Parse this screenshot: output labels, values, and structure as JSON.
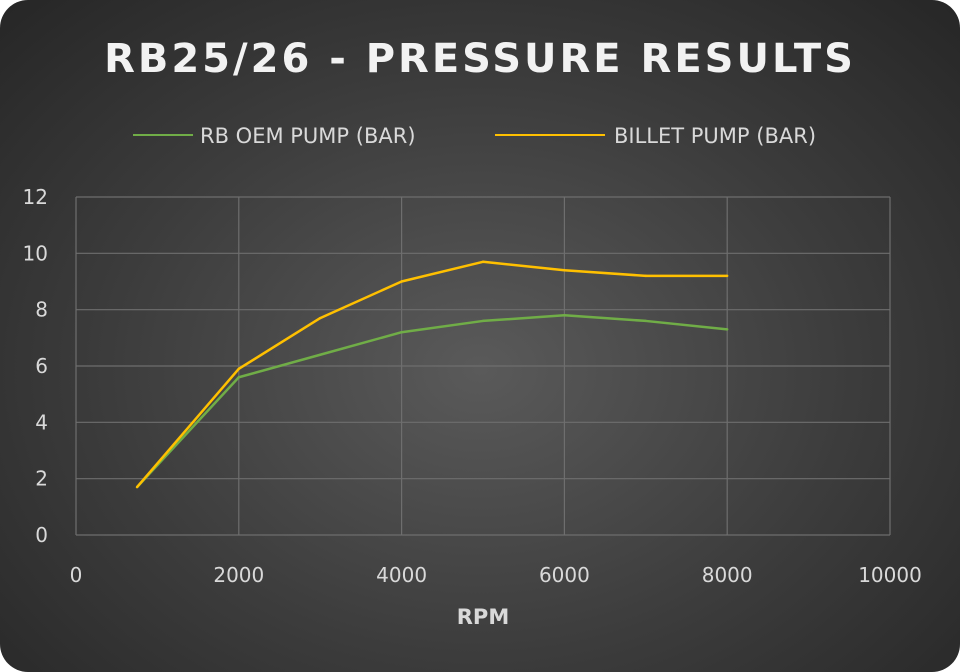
{
  "chart_data": {
    "type": "line",
    "title": "RB25/26 - PRESSURE RESULTS",
    "xlabel": "RPM",
    "ylabel": "",
    "xlim": [
      0,
      10000
    ],
    "ylim": [
      0,
      12
    ],
    "xticks": [
      0,
      2000,
      4000,
      6000,
      8000,
      10000
    ],
    "yticks": [
      0,
      2,
      4,
      6,
      8,
      10,
      12
    ],
    "grid": true,
    "legend_position": "top",
    "series": [
      {
        "name": "RB OEM PUMP (BAR)",
        "color": "#70ad47",
        "x": [
          750,
          2000,
          3000,
          4000,
          5000,
          6000,
          7000,
          8000
        ],
        "y": [
          1.7,
          5.6,
          6.4,
          7.2,
          7.6,
          7.8,
          7.6,
          7.3
        ]
      },
      {
        "name": "BILLET PUMP (BAR)",
        "color": "#ffc000",
        "x": [
          750,
          2000,
          3000,
          4000,
          5000,
          6000,
          7000,
          8000
        ],
        "y": [
          1.7,
          5.9,
          7.7,
          9.0,
          9.7,
          9.4,
          9.2,
          9.2
        ]
      }
    ]
  }
}
